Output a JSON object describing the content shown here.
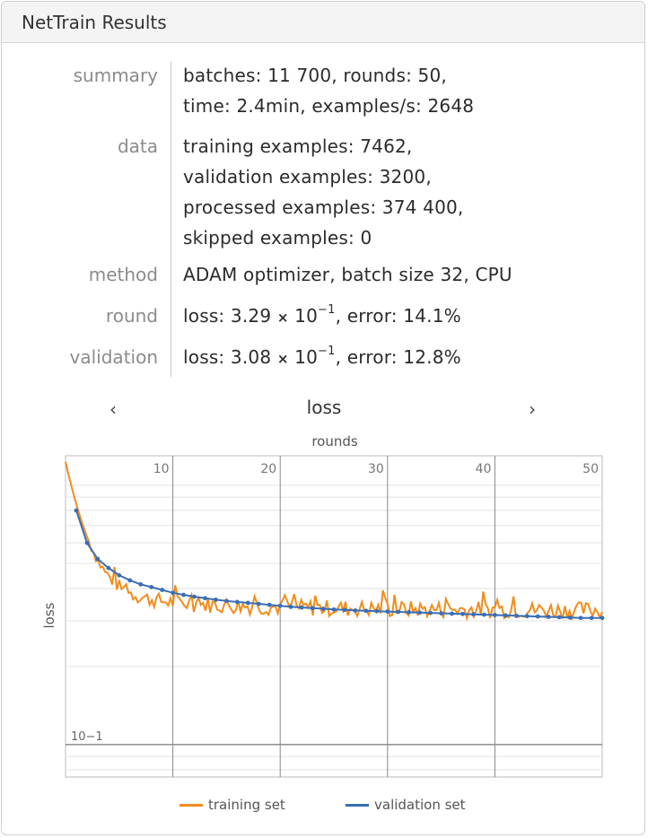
{
  "window": {
    "title": "NetTrain Results"
  },
  "properties": {
    "summary": {
      "label": "summary",
      "line1": "batches: 11 700, rounds: 50,",
      "line2": "time: 2.4min, examples/s: 2648"
    },
    "data": {
      "label": "data",
      "lines": [
        "training examples: 7462,",
        "validation examples: 3200,",
        "processed examples: 374 400,",
        "skipped examples: 0"
      ]
    },
    "method": {
      "label": "method",
      "text": "ADAM optimizer, batch size 32, CPU"
    },
    "round": {
      "label": "round",
      "loss_prefix": "loss: 3.29",
      "times": "×",
      "base": "10",
      "exp": "−1",
      "error": ", error: 14.1%"
    },
    "validation": {
      "label": "validation",
      "loss_prefix": "loss: 3.08",
      "times": "×",
      "base": "10",
      "exp": "−1",
      "error": ", error: 12.8%"
    }
  },
  "nav": {
    "prev": "‹",
    "next": "›",
    "title": "loss"
  },
  "chart_data": {
    "type": "line",
    "title": "",
    "xlabel": "rounds",
    "ylabel": "loss",
    "xlim": [
      0,
      50
    ],
    "x_ticks": [
      "10",
      "20",
      "30",
      "40",
      "50"
    ],
    "y_scale": "log",
    "y_tick_label": "10−1",
    "colors": {
      "training": "#f28c1a",
      "validation": "#3a6eb5"
    },
    "series": [
      {
        "name": "training set",
        "summary": "noisy; starts ≈1.2, drops to ≈0.38 by round 10, ≈0.33 by round 50"
      },
      {
        "name": "validation set",
        "values": [
          0.8,
          0.6,
          0.52,
          0.48,
          0.45,
          0.43,
          0.415,
          0.405,
          0.395,
          0.385,
          0.378,
          0.372,
          0.367,
          0.362,
          0.358,
          0.355,
          0.352,
          0.349,
          0.346,
          0.343,
          0.34,
          0.338,
          0.336,
          0.334,
          0.332,
          0.331,
          0.329,
          0.328,
          0.327,
          0.326,
          0.325,
          0.324,
          0.323,
          0.322,
          0.321,
          0.32,
          0.319,
          0.318,
          0.317,
          0.316,
          0.315,
          0.314,
          0.313,
          0.312,
          0.311,
          0.31,
          0.309,
          0.308,
          0.308,
          0.308
        ]
      }
    ],
    "legend_position": "bottom"
  },
  "legend": {
    "training": "training set",
    "validation": "validation set"
  }
}
